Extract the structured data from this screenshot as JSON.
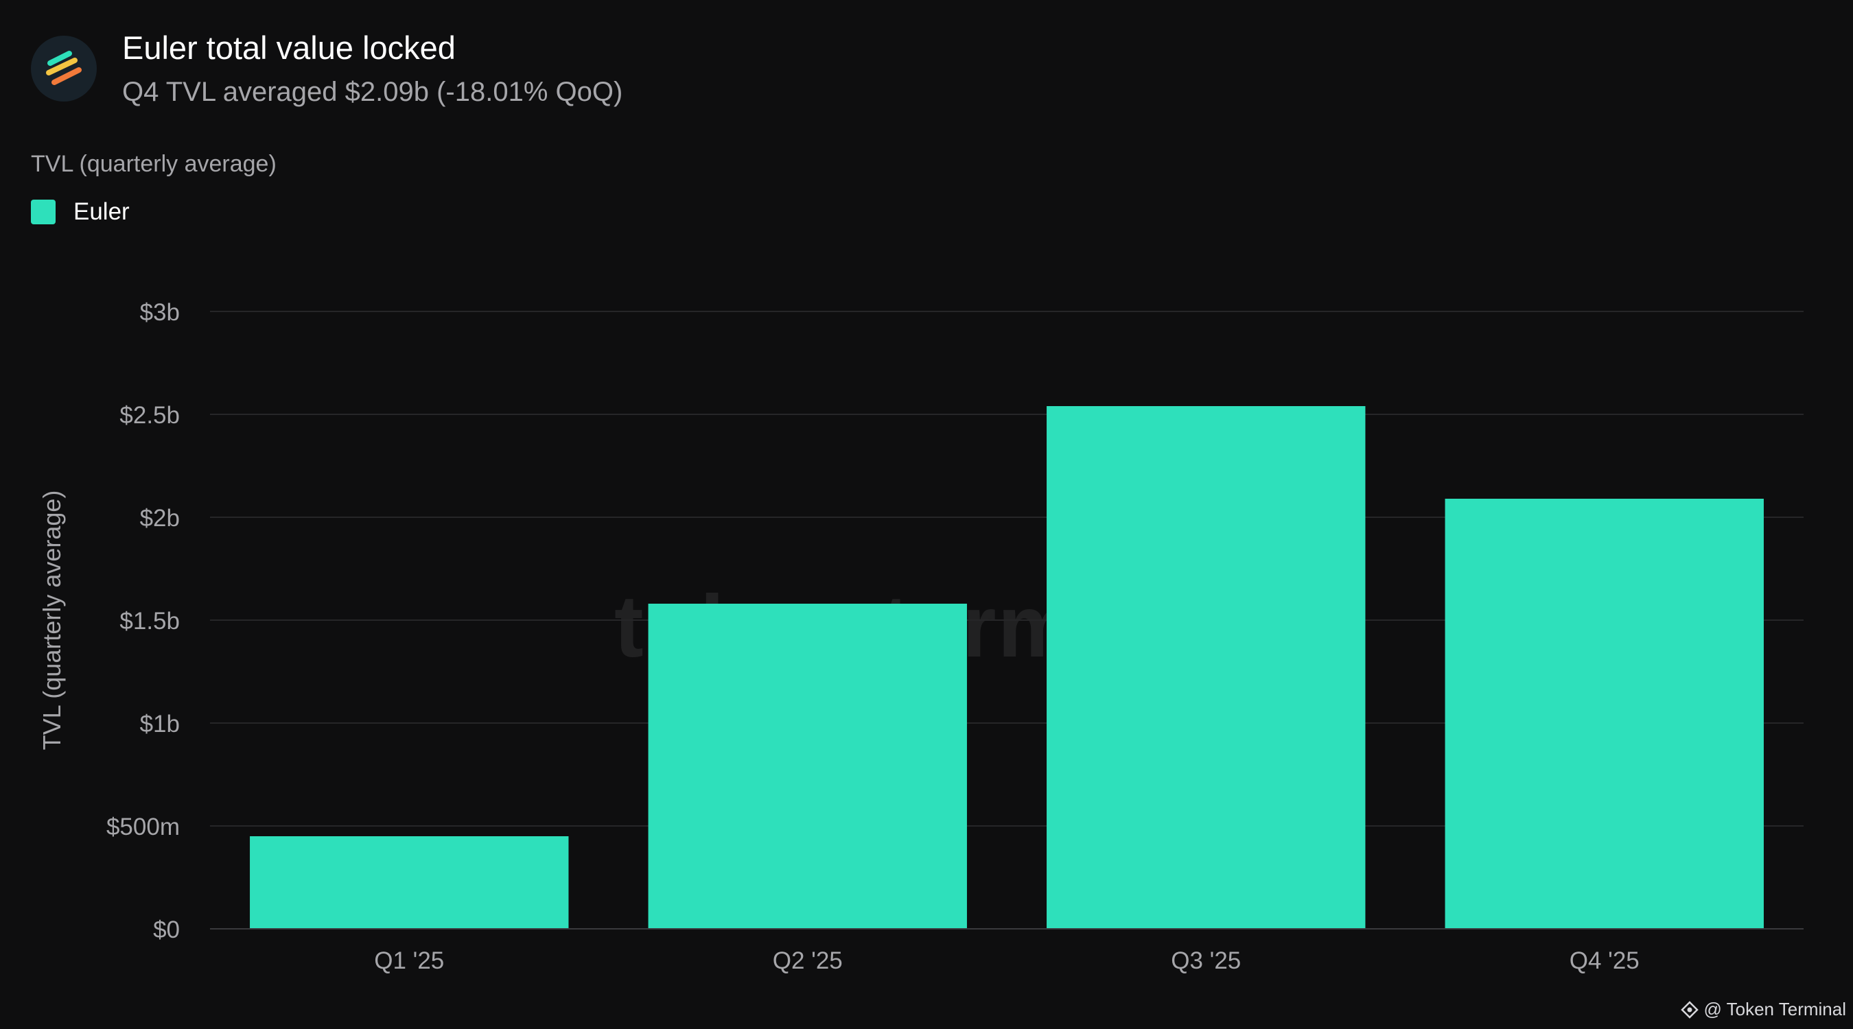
{
  "header": {
    "logo_icon": "euler-logo-icon",
    "title": "Euler total value locked",
    "subtitle": "Q4 TVL averaged $2.09b (-18.01% QoQ)"
  },
  "metric_label": "TVL (quarterly average)",
  "legend": {
    "items": [
      {
        "label": "Euler",
        "color": "#2ee0bb"
      }
    ]
  },
  "watermark": "token terminal_",
  "attribution": {
    "icon": "token-terminal-icon",
    "text": "@ Token Terminal"
  },
  "colors": {
    "background": "#0e0e0f",
    "bar": "#2ee0bb",
    "gridline": "#262628",
    "axis_text": "#a6a6aa"
  },
  "chart_data": {
    "type": "bar",
    "title": "Euler total value locked",
    "subtitle": "Q4 TVL averaged $2.09b (-18.01% QoQ)",
    "ylabel": "TVL (quarterly average)",
    "xlabel": "",
    "categories": [
      "Q1 '25",
      "Q2 '25",
      "Q3 '25",
      "Q4 '25"
    ],
    "series": [
      {
        "name": "Euler",
        "color": "#2ee0bb",
        "values": [
          450000000,
          1580000000,
          2540000000,
          2090000000
        ]
      }
    ],
    "ylim": [
      0,
      3000000000
    ],
    "yticks": [
      {
        "value": 0,
        "label": "$0"
      },
      {
        "value": 500000000,
        "label": "$500m"
      },
      {
        "value": 1000000000,
        "label": "$1b"
      },
      {
        "value": 1500000000,
        "label": "$1.5b"
      },
      {
        "value": 2000000000,
        "label": "$2b"
      },
      {
        "value": 2500000000,
        "label": "$2.5b"
      },
      {
        "value": 3000000000,
        "label": "$3b"
      }
    ],
    "grid": true,
    "legend_position": "top-left"
  }
}
